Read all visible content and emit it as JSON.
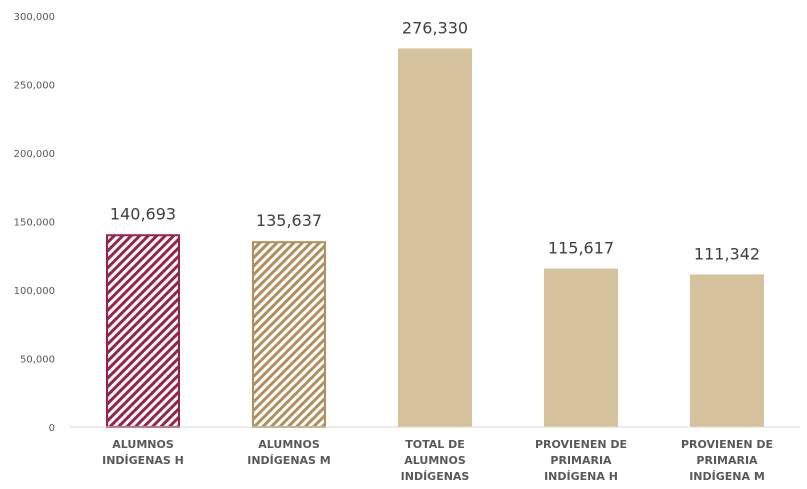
{
  "chart_data": {
    "type": "bar",
    "categories": [
      [
        "ALUMNOS",
        "INDÍGENAS H"
      ],
      [
        "ALUMNOS",
        "INDÍGENAS M"
      ],
      [
        "TOTAL DE",
        "ALUMNOS",
        "INDÍGENAS"
      ],
      [
        "PROVIENEN DE",
        "PRIMARIA",
        "INDÍGENA H"
      ],
      [
        "PROVIENEN DE",
        "PRIMARIA",
        "INDÍGENA M"
      ]
    ],
    "values": [
      140693,
      135637,
      276330,
      115617,
      111342
    ],
    "data_labels": [
      "140,693",
      "135,637",
      "276,330",
      "115,617",
      "111,342"
    ],
    "fills": [
      "pattern-red",
      "pattern-tan",
      "#d5c19c",
      "#d5c19c",
      "#d5c19c"
    ],
    "colors": {
      "red": "#9b2247",
      "tan": "#b38e5d",
      "beige": "#d5c19c",
      "axis": "#d9d9d9"
    },
    "ylim": [
      0,
      300000
    ],
    "yticks": [
      0,
      50000,
      100000,
      150000,
      200000,
      250000,
      300000
    ],
    "ytick_labels": [
      "0",
      "50,000",
      "100,000",
      "150,000",
      "200,000",
      "250,000",
      "300,000"
    ],
    "title": "",
    "xlabel": "",
    "ylabel": "",
    "legend": "none",
    "grid": false
  }
}
